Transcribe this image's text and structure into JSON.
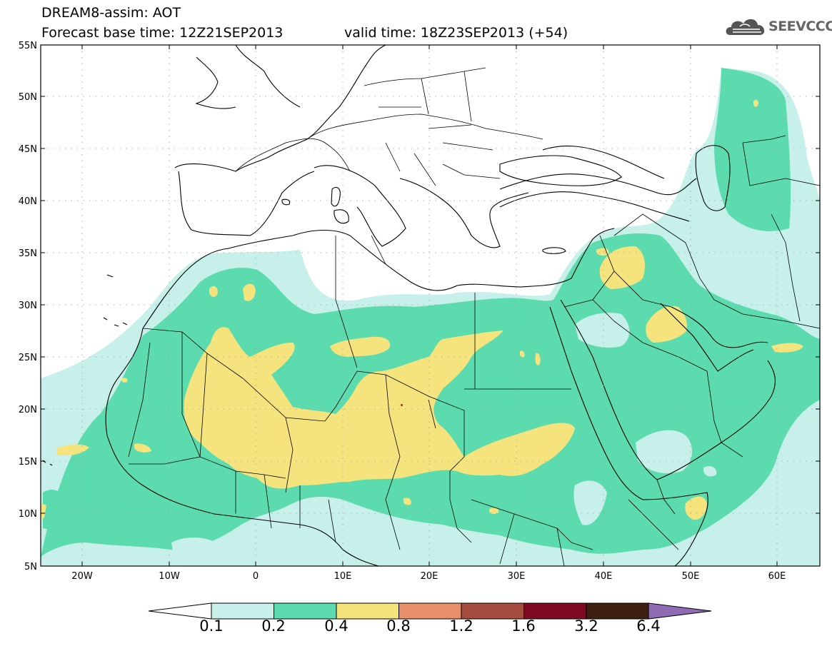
{
  "header": {
    "title_line1": "DREAM8-assim: AOT",
    "title_line2": "Forecast base time: 12Z21SEP2013",
    "valid_time": "valid time: 18Z23SEP2013 (+54)",
    "logo_text": "SEEVCCC",
    "logo_icon": "cloud-icon"
  },
  "map": {
    "region": "North Africa / Middle East",
    "lat_labels": [
      "55N",
      "50N",
      "45N",
      "40N",
      "35N",
      "30N",
      "25N",
      "20N",
      "15N",
      "10N",
      "5N"
    ],
    "lon_labels": [
      "20W",
      "10W",
      "0",
      "10E",
      "20E",
      "30E",
      "40E",
      "50E",
      "60E"
    ]
  },
  "colorbar": {
    "tick_labels": [
      "0.1",
      "0.2",
      "0.4",
      "0.8",
      "1.2",
      "1.6",
      "3.2",
      "6.4"
    ],
    "colors": [
      "#c6f0e9",
      "#5cdcae",
      "#f5e47e",
      "#e8906a",
      "#a64d40",
      "#7f0a24",
      "#3d2012",
      "#8e6bb3"
    ]
  }
}
